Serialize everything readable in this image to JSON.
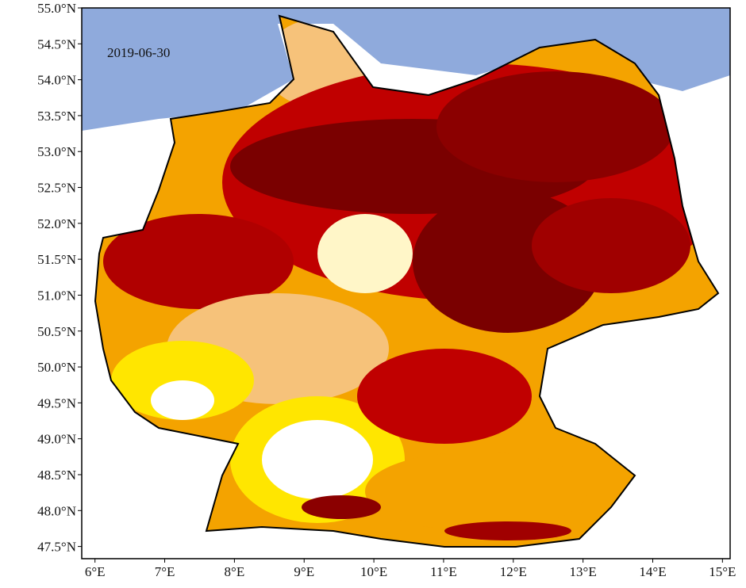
{
  "map": {
    "date": "2019-06-30",
    "xlim": [
      5.81,
      15.11
    ],
    "ylim": [
      47.33,
      55.0
    ],
    "xticks": [
      {
        "value": 6,
        "label": "6°E"
      },
      {
        "value": 7,
        "label": "7°E"
      },
      {
        "value": 8,
        "label": "8°E"
      },
      {
        "value": 9,
        "label": "9°E"
      },
      {
        "value": 10,
        "label": "10°E"
      },
      {
        "value": 11,
        "label": "11°E"
      },
      {
        "value": 12,
        "label": "12°E"
      },
      {
        "value": 13,
        "label": "13°E"
      },
      {
        "value": 14,
        "label": "14°E"
      },
      {
        "value": 15,
        "label": "15°E"
      }
    ],
    "yticks": [
      {
        "value": 47.5,
        "label": "47.5°N"
      },
      {
        "value": 48.0,
        "label": "48.0°N"
      },
      {
        "value": 48.5,
        "label": "48.5°N"
      },
      {
        "value": 49.0,
        "label": "49.0°N"
      },
      {
        "value": 49.5,
        "label": "49.5°N"
      },
      {
        "value": 50.0,
        "label": "50.0°N"
      },
      {
        "value": 50.5,
        "label": "50.5°N"
      },
      {
        "value": 51.0,
        "label": "51.0°N"
      },
      {
        "value": 51.5,
        "label": "51.5°N"
      },
      {
        "value": 52.0,
        "label": "52.0°N"
      },
      {
        "value": 52.5,
        "label": "52.5°N"
      },
      {
        "value": 53.0,
        "label": "53.0°N"
      },
      {
        "value": 53.5,
        "label": "53.5°N"
      },
      {
        "value": 54.0,
        "label": "54.0°N"
      },
      {
        "value": 54.5,
        "label": "54.5°N"
      },
      {
        "value": 55.0,
        "label": "55.0°N"
      }
    ]
  }
}
